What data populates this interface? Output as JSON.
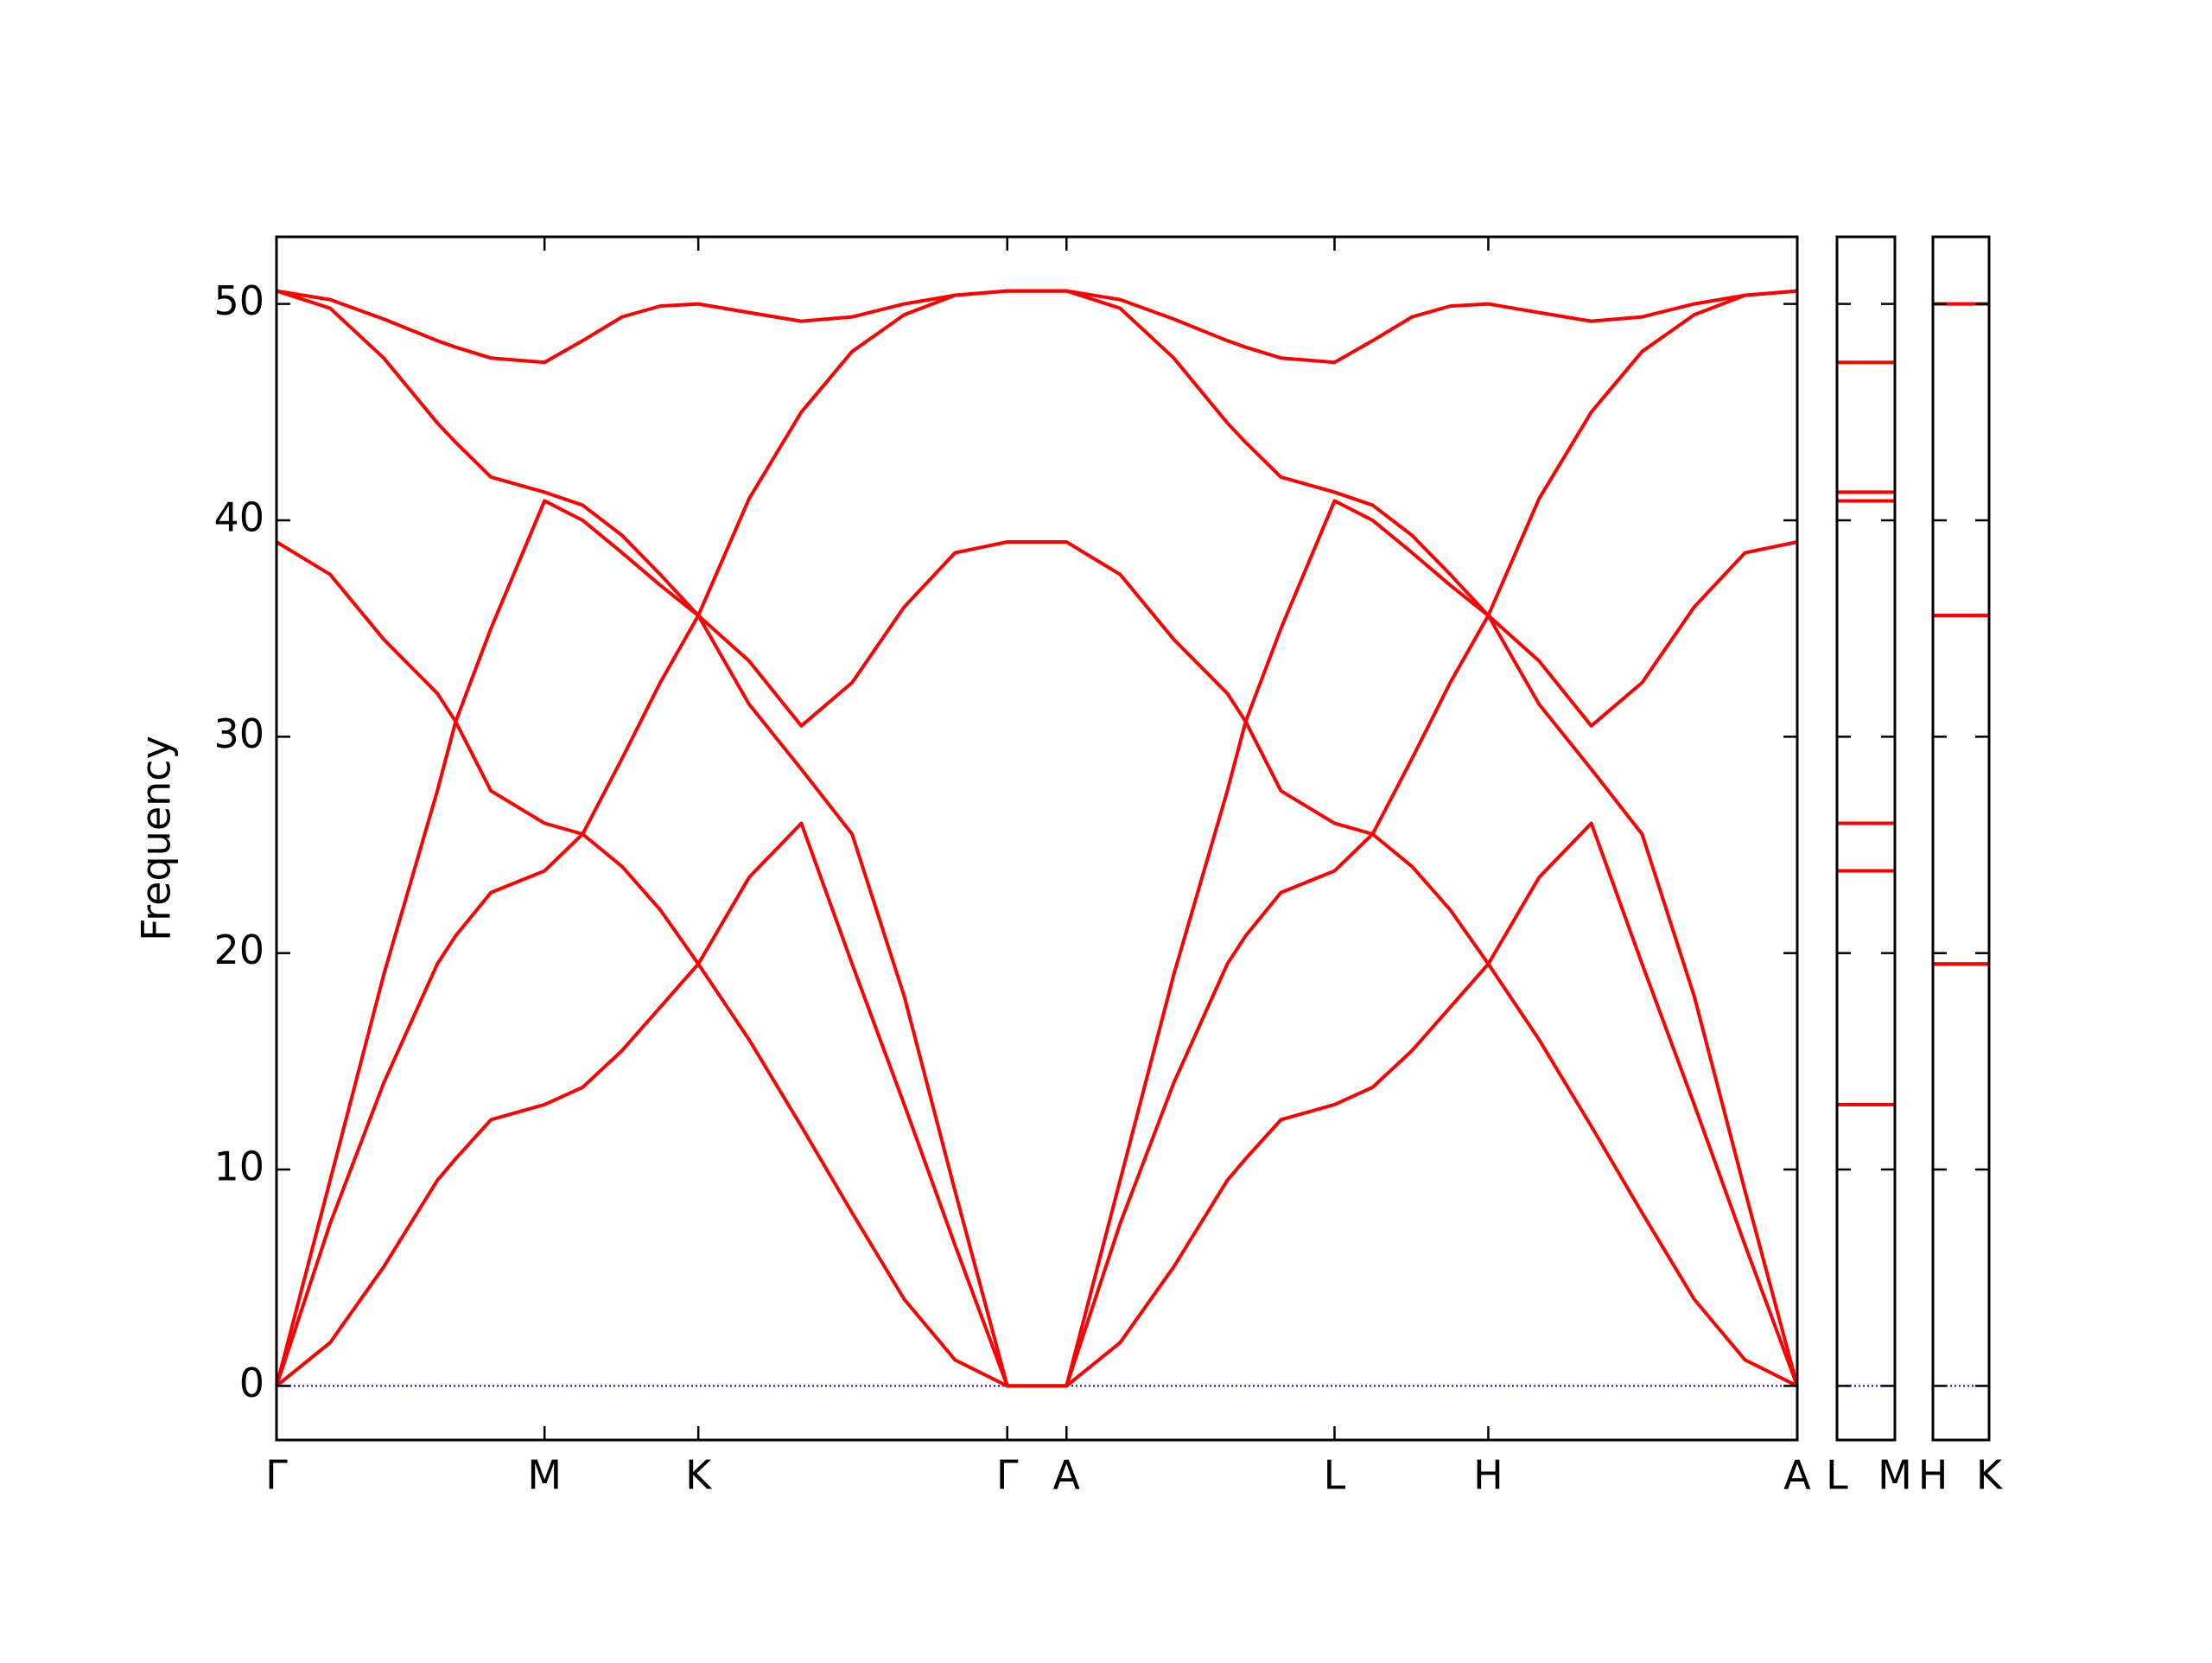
{
  "chart_data": [
    {
      "type": "line",
      "ylabel": "Frequency",
      "color": "#ff0000",
      "zero_line": 0,
      "zero_line_color": "#0000ff",
      "xlim": [
        0,
        1078
      ],
      "ylim": [
        -2.5,
        53.1
      ],
      "yticks": [
        0,
        10,
        20,
        30,
        40,
        50
      ],
      "xticks": [
        {
          "value": 0,
          "label": "Γ"
        },
        {
          "value": 190,
          "label": "M"
        },
        {
          "value": 299,
          "label": "K"
        },
        {
          "value": 518,
          "label": "Γ"
        },
        {
          "value": 560,
          "label": "A"
        },
        {
          "value": 750,
          "label": "L"
        },
        {
          "value": 859,
          "label": "H"
        },
        {
          "value": 1078,
          "label": "A"
        }
      ],
      "x": [
        0,
        38,
        76,
        114,
        127,
        152,
        190,
        217,
        245,
        272,
        299,
        335,
        372,
        408,
        445,
        481,
        518,
        560,
        598,
        636,
        674,
        687,
        712,
        750,
        777,
        805,
        832,
        859,
        895,
        932,
        968,
        1005,
        1041,
        1078
      ],
      "series": [
        {
          "values": [
            0,
            2.0,
            5.5,
            9.5,
            10.5,
            12.3,
            13,
            13.8,
            15.5,
            17.5,
            19.5,
            16,
            12,
            8,
            4,
            1.2,
            0,
            0,
            2.0,
            5.5,
            9.5,
            10.5,
            12.3,
            13,
            13.8,
            15.5,
            17.5,
            19.5,
            16,
            12,
            8,
            4,
            1.2,
            0
          ]
        },
        {
          "values": [
            0,
            7.5,
            14,
            19.5,
            20.8,
            22.8,
            23.8,
            25.5,
            24,
            22,
            19.5,
            23.5,
            26,
            19.5,
            13,
            6.5,
            0,
            0,
            7.5,
            14,
            19.5,
            20.8,
            22.8,
            23.8,
            25.5,
            24,
            22,
            19.5,
            23.5,
            26,
            19.5,
            13,
            6.5,
            0
          ]
        },
        {
          "values": [
            0,
            9.5,
            19,
            27.5,
            30.7,
            27.5,
            26,
            25.5,
            29,
            32.5,
            35.6,
            31.5,
            28.5,
            25.5,
            18,
            9,
            0,
            0,
            9.5,
            19,
            27.5,
            30.7,
            27.5,
            26,
            25.5,
            29,
            32.5,
            35.6,
            31.5,
            28.5,
            25.5,
            18,
            9,
            0
          ]
        },
        {
          "values": [
            39,
            37.5,
            34.5,
            32,
            30.7,
            35,
            40.9,
            40,
            38.5,
            37,
            35.6,
            33.5,
            30.5,
            32.5,
            36,
            38.5,
            39,
            39,
            37.5,
            34.5,
            32,
            30.7,
            35,
            40.9,
            40,
            38.5,
            37,
            35.6,
            33.5,
            30.5,
            32.5,
            36,
            38.5,
            39
          ]
        },
        {
          "values": [
            50.6,
            49.8,
            47.5,
            44.5,
            43.6,
            42,
            41.3,
            40.7,
            39.3,
            37.5,
            35.6,
            41,
            45,
            47.8,
            49.5,
            50.4,
            50.6,
            50.6,
            49.8,
            47.5,
            44.5,
            43.6,
            42,
            41.3,
            40.7,
            39.3,
            37.5,
            35.6,
            41,
            45,
            47.8,
            49.5,
            50.4,
            50.6
          ]
        },
        {
          "values": [
            50.6,
            50.2,
            49.3,
            48.3,
            48.0,
            47.5,
            47.3,
            48.3,
            49.4,
            49.9,
            50,
            49.6,
            49.2,
            49.4,
            50,
            50.4,
            50.6,
            50.6,
            50.2,
            49.3,
            48.3,
            48.0,
            47.5,
            47.3,
            48.3,
            49.4,
            49.9,
            50,
            49.6,
            49.2,
            49.4,
            50,
            50.4,
            50.6
          ]
        }
      ]
    },
    {
      "type": "line",
      "color": "#ff0000",
      "zero_line": 0,
      "zero_line_color": "#0000ff",
      "xlim": [
        0,
        1
      ],
      "ylim": [
        -2.5,
        53.1
      ],
      "xticks": [
        {
          "value": 0,
          "label": "L"
        },
        {
          "value": 1,
          "label": "M"
        }
      ],
      "x": [
        0,
        1
      ],
      "series": [
        {
          "values": [
            13,
            13
          ]
        },
        {
          "values": [
            23.8,
            23.8
          ]
        },
        {
          "values": [
            26,
            26
          ]
        },
        {
          "values": [
            40.9,
            40.9
          ]
        },
        {
          "values": [
            41.3,
            41.3
          ]
        },
        {
          "values": [
            47.3,
            47.3
          ]
        }
      ]
    },
    {
      "type": "line",
      "color": "#ff0000",
      "zero_line": 0,
      "zero_line_color": "#0000ff",
      "xlim": [
        0,
        1
      ],
      "ylim": [
        -2.5,
        53.1
      ],
      "xticks": [
        {
          "value": 0,
          "label": "H"
        },
        {
          "value": 1,
          "label": "K"
        }
      ],
      "x": [
        0,
        1
      ],
      "series": [
        {
          "values": [
            19.5,
            19.5
          ]
        },
        {
          "values": [
            19.5,
            19.5
          ]
        },
        {
          "values": [
            35.6,
            35.6
          ]
        },
        {
          "values": [
            35.6,
            35.6
          ]
        },
        {
          "values": [
            35.6,
            35.6
          ]
        },
        {
          "values": [
            50,
            50
          ]
        }
      ]
    }
  ]
}
